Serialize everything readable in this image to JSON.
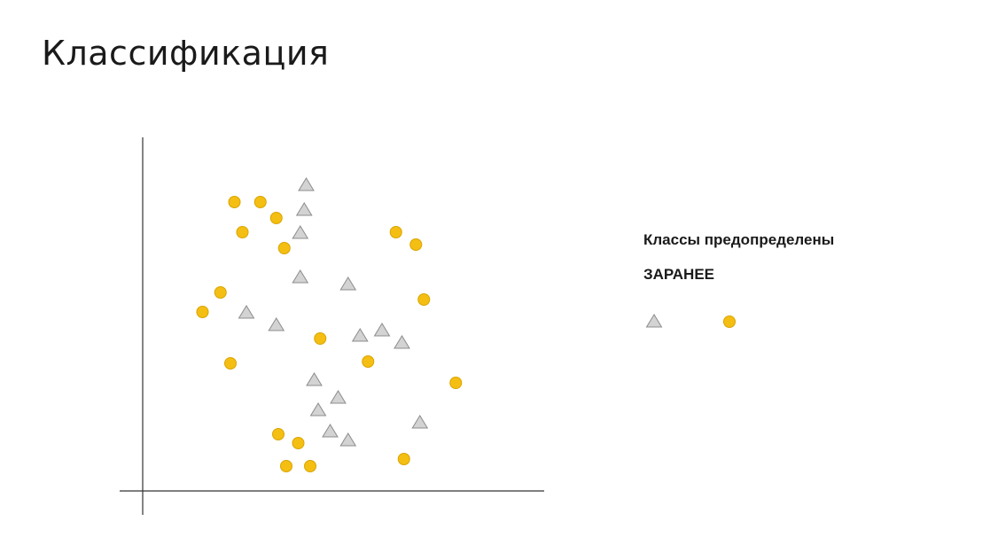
{
  "title": "Классификация",
  "note": {
    "line1": "Классы предопределены",
    "line2": "ЗАРАНЕЕ"
  },
  "colors": {
    "circle_fill": "#F5BE12",
    "circle_stroke": "#D9A500",
    "triangle_fill": "#D3D3D3",
    "triangle_stroke": "#8C8C8C",
    "axis": "#333333"
  },
  "legend": {
    "items": [
      {
        "shape": "triangle",
        "icon": "triangle-icon"
      },
      {
        "shape": "circle",
        "icon": "circle-icon"
      }
    ]
  },
  "chart_data": {
    "type": "scatter",
    "xlim": [
      0,
      100
    ],
    "ylim": [
      0,
      100
    ],
    "series": [
      {
        "shape": "circle",
        "points": [
          [
            23,
            81.5
          ],
          [
            29.5,
            81.5
          ],
          [
            33.5,
            77
          ],
          [
            25,
            73
          ],
          [
            35.5,
            68.5
          ],
          [
            19.5,
            56
          ],
          [
            15,
            50.5
          ],
          [
            22,
            36
          ],
          [
            44.5,
            43
          ],
          [
            56.5,
            36.5
          ],
          [
            78.5,
            30.5
          ],
          [
            70.5,
            54
          ],
          [
            63.5,
            73
          ],
          [
            68.5,
            69.5
          ],
          [
            34,
            16
          ],
          [
            39,
            13.5
          ],
          [
            36,
            7
          ],
          [
            42,
            7
          ],
          [
            65.5,
            9
          ]
        ]
      },
      {
        "shape": "triangle",
        "points": [
          [
            41,
            86.5
          ],
          [
            40.5,
            79.5
          ],
          [
            39.5,
            73
          ],
          [
            39.5,
            60.5
          ],
          [
            51.5,
            58.5
          ],
          [
            26,
            50.5
          ],
          [
            33.5,
            47
          ],
          [
            54.5,
            44
          ],
          [
            60,
            45.5
          ],
          [
            65,
            42
          ],
          [
            43,
            31.5
          ],
          [
            49,
            26.5
          ],
          [
            44,
            23
          ],
          [
            47,
            17
          ],
          [
            51.5,
            14.5
          ],
          [
            69.5,
            19.5
          ]
        ]
      }
    ]
  }
}
